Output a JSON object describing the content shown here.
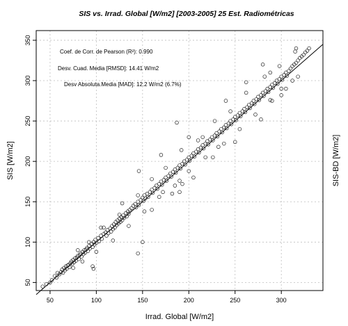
{
  "chart_data": {
    "type": "scatter",
    "title": "SIS vs. Irrad. Global [W/m2] [2003-2005] 25 Est. Radiométricas",
    "xlabel": "Irrad. Global [W/m2]",
    "ylabel": "SIS [W/m2]",
    "ylabel_right": "SIS-BD [W/m2]",
    "xlim": [
      35,
      345
    ],
    "ylim": [
      40,
      362
    ],
    "xticks": [
      50,
      100,
      150,
      200,
      250,
      300
    ],
    "yticks": [
      50,
      100,
      150,
      200,
      250,
      300,
      350
    ],
    "grid": true,
    "reference_line": {
      "slope": 1,
      "intercept": 0
    },
    "annotations": [
      "Coef. de Corr. de Pearson (R²): 0.990",
      "Desv. Cuad. Media [RMSD]:  14.41 W/m2",
      "Desv Absoluta.Media [MAD]:  12.2 W/m2 (6.7%)"
    ],
    "series": [
      {
        "marker": "open-circle",
        "x": [
          42,
          46,
          50,
          52,
          55,
          57,
          58,
          60,
          62,
          63,
          64,
          65,
          66,
          67,
          68,
          69,
          70,
          71,
          72,
          73,
          74,
          75,
          76,
          77,
          78,
          79,
          80,
          81,
          82,
          83,
          84,
          85,
          86,
          87,
          88,
          89,
          90,
          91,
          92,
          93,
          95,
          96,
          97,
          98,
          99,
          100,
          102,
          103,
          105,
          106,
          108,
          110,
          111,
          112,
          113,
          115,
          116,
          117,
          118,
          119,
          120,
          121,
          122,
          123,
          124,
          125,
          126,
          127,
          128,
          129,
          130,
          132,
          133,
          134,
          135,
          136,
          138,
          140,
          142,
          143,
          145,
          146,
          148,
          150,
          151,
          152,
          153,
          155,
          156,
          158,
          160,
          161,
          163,
          165,
          166,
          168,
          170,
          171,
          173,
          175,
          176,
          178,
          180,
          181,
          183,
          185,
          186,
          188,
          190,
          191,
          193,
          195,
          196,
          198,
          200,
          201,
          203,
          205,
          206,
          208,
          210,
          211,
          213,
          215,
          216,
          218,
          220,
          221,
          223,
          225,
          226,
          228,
          230,
          231,
          233,
          235,
          236,
          238,
          240,
          241,
          243,
          245,
          246,
          248,
          250,
          251,
          253,
          255,
          256,
          258,
          260,
          261,
          263,
          265,
          266,
          268,
          270,
          271,
          273,
          275,
          276,
          278,
          280,
          281,
          283,
          285,
          286,
          288,
          290,
          291,
          293,
          295,
          296,
          298,
          300,
          301,
          303,
          305,
          306,
          308,
          310,
          312,
          314,
          316,
          318,
          320,
          322,
          324,
          326,
          328,
          330,
          75,
          80,
          85,
          92,
          100,
          108,
          118,
          125,
          135,
          145,
          152,
          160,
          168,
          175,
          185,
          192,
          200,
          210,
          218,
          228,
          238,
          245,
          255,
          262,
          272,
          282,
          290,
          298,
          305,
          315,
          97,
          96,
          105,
          128,
          145,
          150,
          146,
          160,
          170,
          172,
          187,
          190,
          200,
          205,
          215,
          226,
          240,
          232,
          250,
          262,
          278,
          288,
          300,
          312,
          318,
          288,
          316,
          300,
          280,
          193,
          190,
          182
        ],
        "y": [
          45,
          48,
          50,
          53,
          58,
          56,
          62,
          60,
          63,
          66,
          62,
          68,
          65,
          70,
          67,
          71,
          72,
          69,
          74,
          76,
          73,
          78,
          75,
          80,
          77,
          81,
          83,
          79,
          84,
          86,
          82,
          88,
          85,
          90,
          87,
          91,
          93,
          89,
          95,
          92,
          98,
          94,
          100,
          97,
          103,
          99,
          105,
          101,
          108,
          104,
          110,
          112,
          108,
          115,
          111,
          117,
          113,
          120,
          116,
          122,
          118,
          125,
          121,
          127,
          123,
          129,
          125,
          131,
          127,
          133,
          130,
          136,
          132,
          138,
          135,
          140,
          142,
          145,
          147,
          143,
          150,
          146,
          152,
          155,
          151,
          158,
          154,
          160,
          156,
          162,
          165,
          161,
          167,
          170,
          166,
          172,
          175,
          171,
          177,
          180,
          176,
          182,
          185,
          181,
          187,
          190,
          186,
          192,
          195,
          191,
          197,
          200,
          196,
          202,
          205,
          201,
          207,
          210,
          206,
          212,
          215,
          211,
          217,
          220,
          216,
          222,
          225,
          221,
          227,
          230,
          226,
          232,
          235,
          231,
          237,
          240,
          236,
          242,
          245,
          241,
          247,
          250,
          246,
          252,
          255,
          251,
          257,
          260,
          256,
          262,
          265,
          261,
          267,
          270,
          266,
          272,
          275,
          271,
          277,
          280,
          276,
          282,
          285,
          281,
          287,
          290,
          286,
          292,
          295,
          291,
          297,
          300,
          296,
          302,
          305,
          301,
          307,
          310,
          306,
          312,
          315,
          318,
          320,
          322,
          325,
          328,
          330,
          332,
          335,
          337,
          340,
          68,
          90,
          76,
          100,
          88,
          118,
          102,
          134,
          120,
          158,
          138,
          178,
          156,
          192,
          170,
          214,
          188,
          226,
          205,
          250,
          222,
          262,
          240,
          285,
          258,
          305,
          275,
          318,
          290,
          336,
          67,
          70,
          118,
          148,
          86,
          100,
          188,
          140,
          208,
          162,
          248,
          176,
          230,
          180,
          230,
          205,
          275,
          218,
          224,
          298,
          252,
          276,
          282,
          300,
          305,
          310,
          340,
          290,
          320,
          172,
          162,
          160
        ]
      }
    ]
  }
}
